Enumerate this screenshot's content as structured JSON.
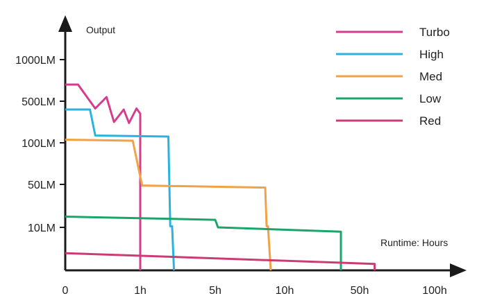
{
  "chart_data": {
    "type": "line",
    "title": "",
    "ylabel": "Output",
    "xlabel": "Runtime: Hours",
    "x_ticks": [
      "0",
      "1h",
      "5h",
      "10h",
      "50h",
      "100h"
    ],
    "y_ticks": [
      "10LM",
      "50LM",
      "100LM",
      "500LM",
      "1000LM"
    ],
    "x_scale": "log-like hours",
    "y_scale": "log-like lumens",
    "grid": false,
    "legend_position": "top-right",
    "series": [
      {
        "name": "Turbo",
        "color": "#d63c8e",
        "points": [
          [
            0,
            700
          ],
          [
            0.17,
            700
          ],
          [
            0.4,
            430
          ],
          [
            0.55,
            550
          ],
          [
            0.65,
            300
          ],
          [
            0.78,
            420
          ],
          [
            0.85,
            290
          ],
          [
            0.95,
            430
          ],
          [
            1,
            380
          ],
          [
            1,
            0
          ]
        ]
      },
      {
        "name": "High",
        "color": "#2ab3de",
        "points": [
          [
            0,
            420
          ],
          [
            0.33,
            420
          ],
          [
            0.4,
            170
          ],
          [
            2.5,
            160
          ],
          [
            2.6,
            11
          ],
          [
            2.7,
            11
          ],
          [
            2.8,
            0
          ]
        ]
      },
      {
        "name": "Med",
        "color": "#f1a146",
        "points": [
          [
            0,
            130
          ],
          [
            0.9,
            120
          ],
          [
            1.1,
            49
          ],
          [
            8.6,
            47
          ],
          [
            8.7,
            11
          ],
          [
            8.8,
            11
          ],
          [
            9,
            0
          ]
        ]
      },
      {
        "name": "Low",
        "color": "#1aa56a",
        "points": [
          [
            0,
            20
          ],
          [
            5,
            17
          ],
          [
            5.2,
            10
          ],
          [
            40,
            9
          ],
          [
            40,
            0
          ]
        ]
      },
      {
        "name": "Red",
        "color": "#cc3b73",
        "points": [
          [
            0,
            4
          ],
          [
            60,
            1.5
          ],
          [
            60,
            0
          ]
        ]
      }
    ]
  }
}
